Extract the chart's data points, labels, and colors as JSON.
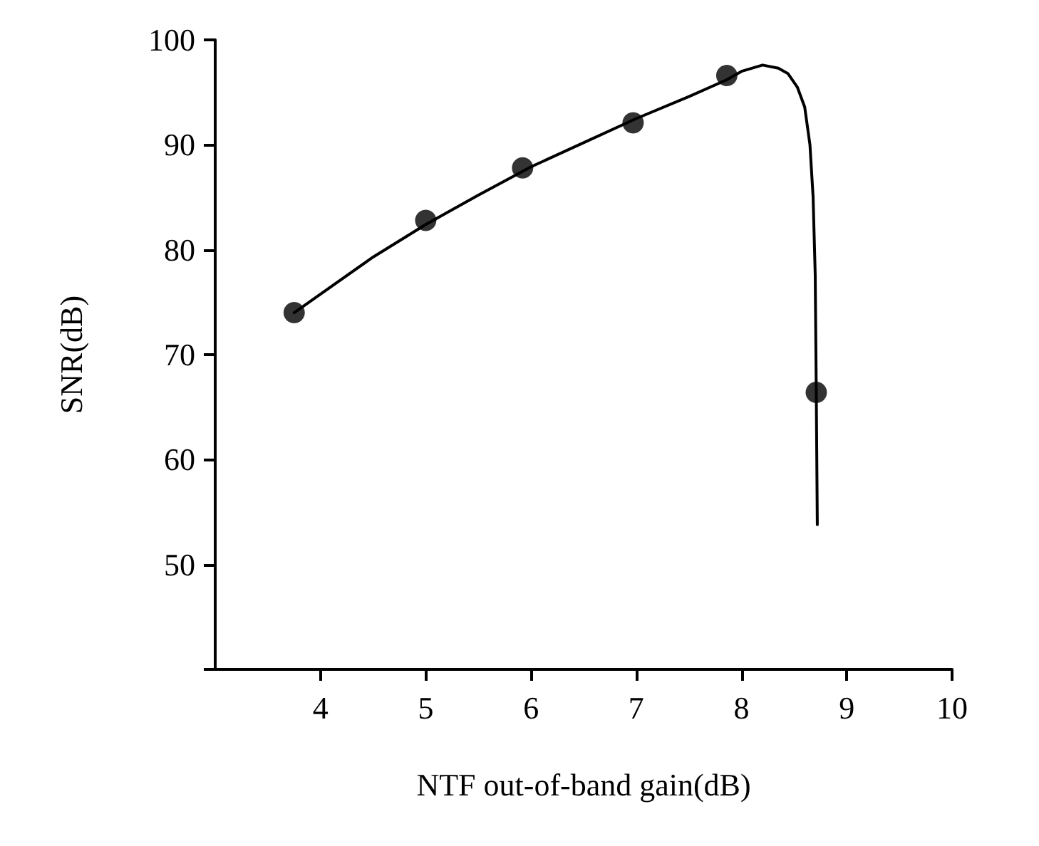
{
  "chart_data": {
    "type": "scatter",
    "xlabel": "NTF out-of-band gain(dB)",
    "ylabel": "SNR(dB)",
    "xlim": [
      3,
      10
    ],
    "xticks": [
      4,
      5,
      6,
      7,
      8,
      9,
      10
    ],
    "ylim": [
      40,
      100
    ],
    "yticks": [
      {
        "value": 40,
        "label": null
      },
      50,
      60,
      70,
      80,
      90,
      100
    ],
    "grid": false,
    "marker": "circle",
    "series": [
      {
        "color": "#000000",
        "x": [
          3.75,
          5.0,
          5.92,
          6.97,
          7.86,
          8.71
        ],
        "values": [
          74.0,
          82.8,
          87.8,
          92.1,
          96.6,
          66.4
        ]
      },
      {
        "type": "line",
        "color": "#000000",
        "marker": "none",
        "line_style": "solid",
        "x": [
          3.75,
          4.5,
          5.0,
          5.5,
          6.0,
          6.5,
          7.0,
          7.5,
          7.86,
          8.0,
          8.2,
          8.35,
          8.44,
          8.53,
          8.6,
          8.65,
          8.68,
          8.7,
          8.71,
          8.72
        ],
        "values": [
          74.0,
          79.3,
          82.4,
          85.2,
          87.9,
          90.2,
          92.5,
          94.6,
          96.2,
          97.0,
          97.6,
          97.3,
          96.8,
          95.5,
          93.6,
          90.0,
          85.0,
          77.6,
          66.4,
          53.8
        ]
      }
    ]
  }
}
